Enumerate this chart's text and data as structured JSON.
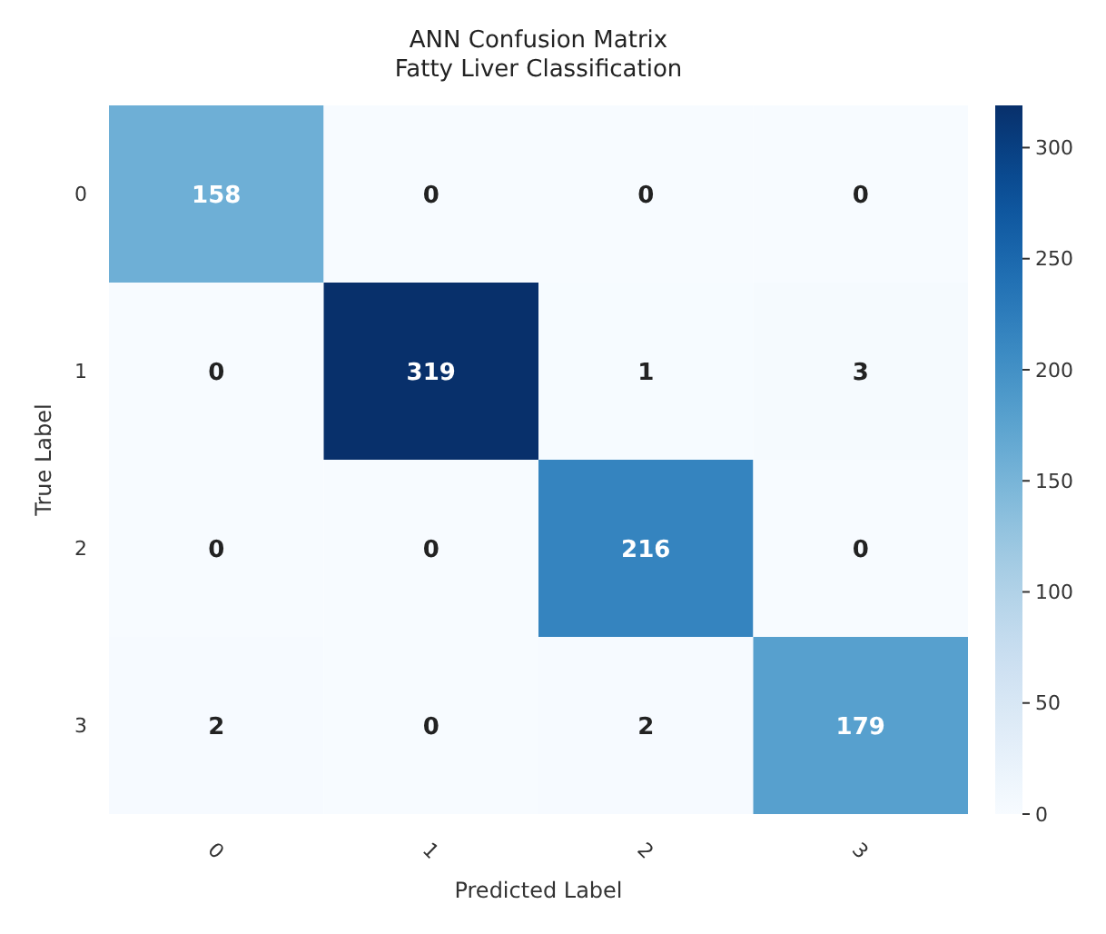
{
  "chart_data": {
    "type": "heatmap",
    "title": "ANN Confusion Matrix\nFatty Liver Classification",
    "xlabel": "Predicted Label",
    "ylabel": "True Label",
    "categories": [
      "0",
      "1",
      "2",
      "3"
    ],
    "y_categories": [
      "0",
      "1",
      "2",
      "3"
    ],
    "cells": [
      [
        158,
        0,
        0,
        0
      ],
      [
        0,
        319,
        1,
        3
      ],
      [
        0,
        0,
        216,
        0
      ],
      [
        2,
        0,
        2,
        179
      ]
    ],
    "data_labels": true,
    "clim": [
      0,
      319
    ],
    "cticks": [
      0,
      50,
      100,
      150,
      200,
      250,
      300
    ]
  }
}
